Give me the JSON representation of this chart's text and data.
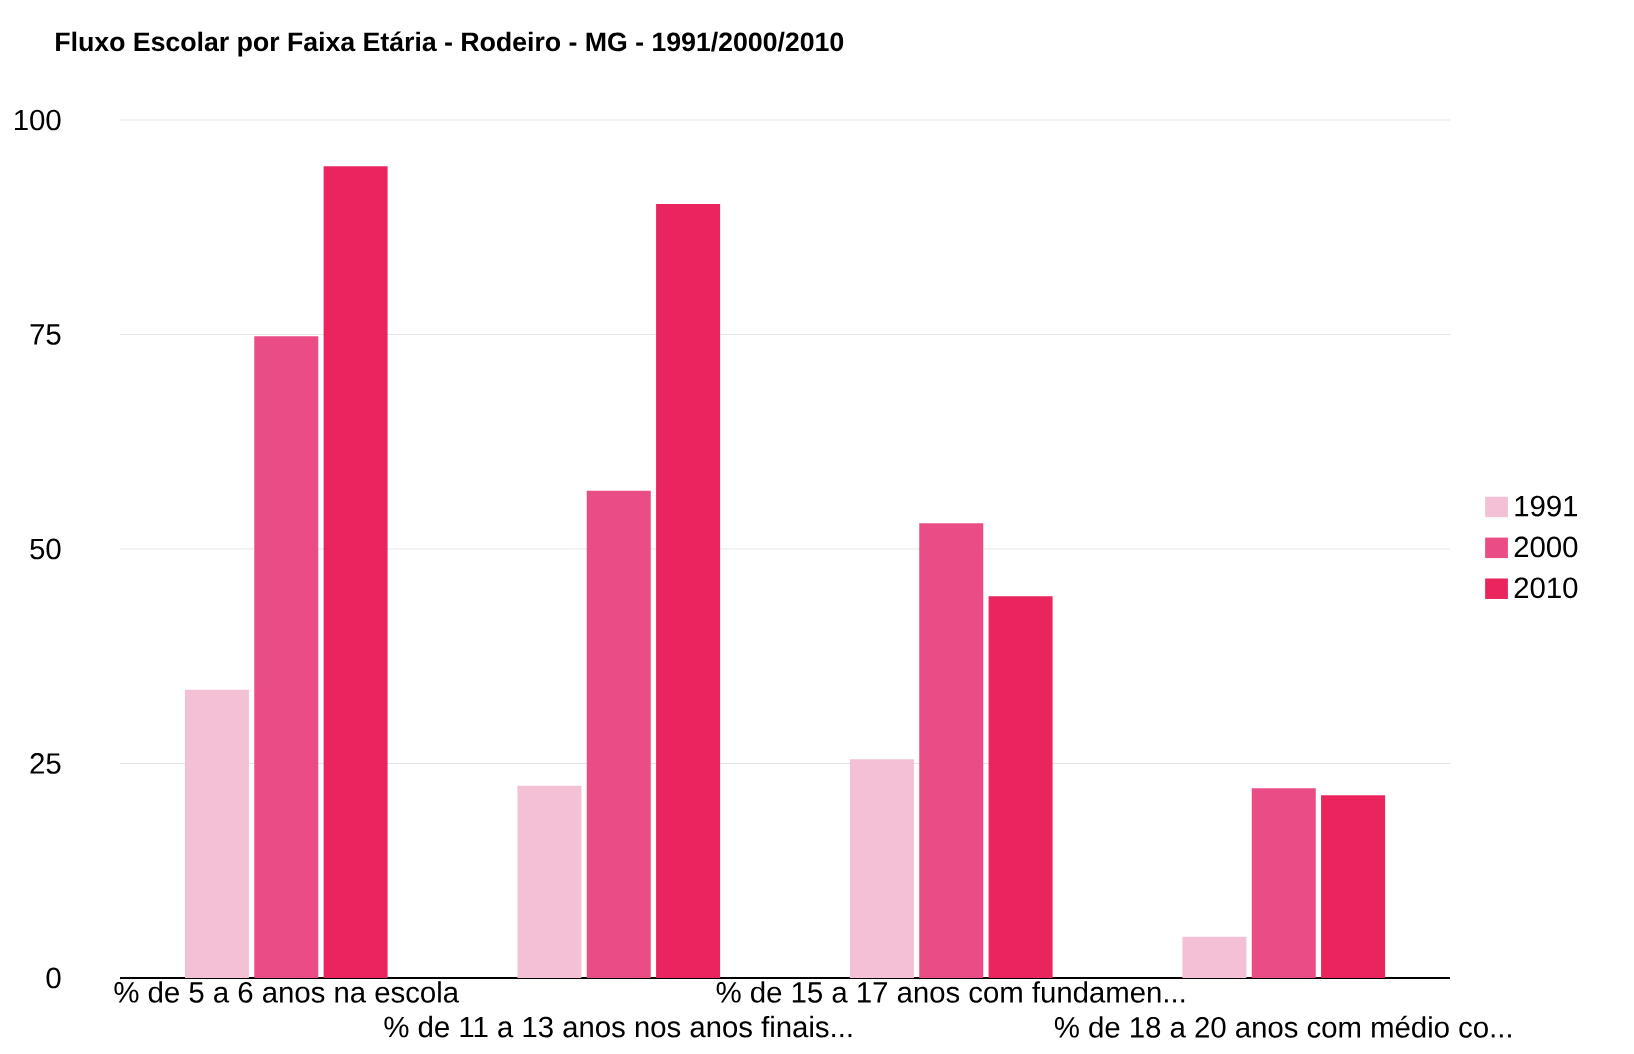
{
  "chart_data": {
    "type": "bar",
    "title": "Fluxo Escolar por Faixa Etária - Rodeiro - MG - 1991/2000/2010",
    "categories": [
      "% de 5 a 6 anos na escola",
      "% de 11 a 13 anos nos anos finais...",
      "% de 15 a 17 anos com fundamen...",
      "% de 18 a 20 anos com médio co..."
    ],
    "series": [
      {
        "name": "1991",
        "color": "#f4c0d6",
        "values": [
          33.6,
          22.4,
          25.5,
          4.8
        ]
      },
      {
        "name": "2000",
        "color": "#ea4c85",
        "values": [
          74.8,
          56.8,
          53.0,
          22.1
        ]
      },
      {
        "name": "2010",
        "color": "#ea245c",
        "values": [
          94.6,
          90.2,
          44.5,
          21.3
        ]
      }
    ],
    "ylim": [
      0,
      100
    ],
    "yticks": [
      0,
      25,
      50,
      75,
      100
    ],
    "grid": "y",
    "legend": "right"
  }
}
